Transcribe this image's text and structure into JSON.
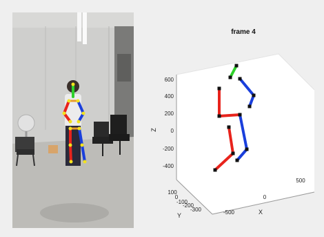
{
  "plot": {
    "title": "frame 4",
    "z_label": "Z",
    "x_label": "X",
    "y_label": "Y",
    "z_ticks": [
      "600",
      "400",
      "200",
      "0",
      "-200",
      "-400"
    ],
    "x_ticks": [
      "-500",
      "0",
      "500"
    ],
    "y_ticks": [
      "100",
      "0",
      "-100",
      "-200",
      "-300"
    ]
  },
  "colors": {
    "right_limb": "#e8231c",
    "left_limb": "#1a3fdc",
    "head": "#2fd12b",
    "joint": "#111111",
    "keypoint": "#f3e21e",
    "box_face": "#ffffff",
    "box_edge": "#c8c8c8"
  }
}
